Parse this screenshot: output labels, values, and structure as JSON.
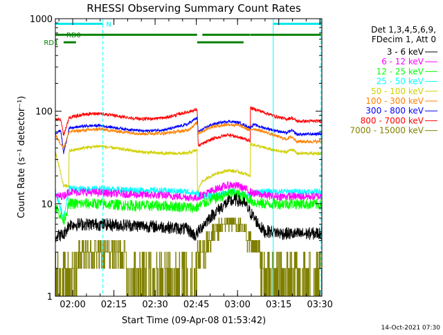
{
  "chart_data": {
    "type": "line",
    "title": "RHESSI Observing Summary Count Rates",
    "xlabel": "Start Time (09-Apr-08 01:53:42)",
    "ylabel": "Count Rate (s⁻¹ detector⁻¹)",
    "x_unit": "minutes since 01:53:42",
    "xlim": [
      0,
      97
    ],
    "ylim": [
      1,
      1000
    ],
    "y_scale": "log",
    "x_ticks": [
      {
        "x": 6.3,
        "label": "02:00"
      },
      {
        "x": 21.3,
        "label": "02:15"
      },
      {
        "x": 36.3,
        "label": "02:30"
      },
      {
        "x": 51.3,
        "label": "02:45"
      },
      {
        "x": 66.3,
        "label": "03:00"
      },
      {
        "x": 81.3,
        "label": "03:15"
      },
      {
        "x": 96.3,
        "label": "03:30"
      }
    ],
    "y_ticks": [
      {
        "y": 1,
        "label": "1"
      },
      {
        "y": 10,
        "label": "10"
      },
      {
        "y": 100,
        "label": "100"
      },
      {
        "y": 1000,
        "label": "1000"
      }
    ],
    "legend_header": [
      "Det 1,3,4,5,6,9,",
      "FDecim 1, Att 0"
    ],
    "footer_date": "14-Oct-2021 07:30",
    "series": [
      {
        "name": "3 - 6 keV",
        "color": "#000000",
        "noise": 0.16,
        "points": [
          [
            0,
            4.5
          ],
          [
            3,
            4.6
          ],
          [
            5,
            6
          ],
          [
            15,
            6
          ],
          [
            30,
            5.8
          ],
          [
            40,
            5.6
          ],
          [
            48,
            5.3
          ],
          [
            51,
            4.5
          ],
          [
            53,
            5.5
          ],
          [
            56,
            7
          ],
          [
            60,
            9
          ],
          [
            63,
            10.5
          ],
          [
            66,
            11
          ],
          [
            69,
            10
          ],
          [
            71,
            8
          ],
          [
            74,
            6
          ],
          [
            76,
            5
          ],
          [
            79,
            5
          ],
          [
            82,
            4.8
          ],
          [
            88,
            4.7
          ],
          [
            97,
            4.8
          ]
        ]
      },
      {
        "name": "6 - 12 keV",
        "color": "#ff00ff",
        "noise": 0.1,
        "points": [
          [
            0,
            12
          ],
          [
            3,
            12.2
          ],
          [
            5,
            13.5
          ],
          [
            15,
            13.2
          ],
          [
            30,
            12.5
          ],
          [
            40,
            12.3
          ],
          [
            48,
            11.8
          ],
          [
            51,
            11.5
          ],
          [
            55,
            13
          ],
          [
            60,
            15
          ],
          [
            64,
            16
          ],
          [
            67,
            15.5
          ],
          [
            70,
            14
          ],
          [
            72,
            13
          ],
          [
            75,
            12.5
          ],
          [
            80,
            12
          ],
          [
            88,
            12
          ],
          [
            97,
            12
          ]
        ]
      },
      {
        "name": "12 - 25 keV",
        "color": "#00ff00",
        "noise": 0.14,
        "points": [
          [
            0,
            9.5
          ],
          [
            3,
            6.5
          ],
          [
            5,
            10
          ],
          [
            15,
            10
          ],
          [
            30,
            9.5
          ],
          [
            40,
            9.5
          ],
          [
            48,
            9.2
          ],
          [
            51,
            9
          ],
          [
            55,
            10.5
          ],
          [
            60,
            12
          ],
          [
            64,
            13
          ],
          [
            67,
            12.5
          ],
          [
            70,
            11.5
          ],
          [
            72,
            10.5
          ],
          [
            75,
            10
          ],
          [
            80,
            10
          ],
          [
            88,
            10
          ],
          [
            97,
            9.8
          ]
        ]
      },
      {
        "name": "25 - 50 keV",
        "color": "#00ffff",
        "noise": 0.08,
        "points": [
          [
            0,
            13.5
          ],
          [
            3,
            7
          ],
          [
            5,
            14.5
          ],
          [
            15,
            14.5
          ],
          [
            30,
            14
          ],
          [
            40,
            13.8
          ],
          [
            48,
            13.5
          ],
          [
            51,
            13
          ],
          [
            55,
            12
          ],
          [
            60,
            12.5
          ],
          [
            64,
            13.5
          ],
          [
            67,
            13
          ],
          [
            70,
            12
          ],
          [
            72,
            13
          ],
          [
            75,
            13.5
          ],
          [
            80,
            13.5
          ],
          [
            88,
            13.5
          ],
          [
            97,
            13.5
          ]
        ]
      },
      {
        "name": "50 - 100 keV",
        "color": "#d0d000",
        "noise": 0.04,
        "points": [
          [
            0,
            37
          ],
          [
            3,
            15.5
          ],
          [
            4.9,
            15.5
          ],
          [
            5,
            37
          ],
          [
            10,
            40
          ],
          [
            16,
            42
          ],
          [
            24,
            39
          ],
          [
            32,
            36
          ],
          [
            40,
            35
          ],
          [
            48,
            35
          ],
          [
            51.6,
            38
          ],
          [
            51.7,
            13
          ],
          [
            53,
            17
          ],
          [
            58,
            21
          ],
          [
            63,
            23
          ],
          [
            67,
            22
          ],
          [
            70.9,
            20
          ],
          [
            71,
            44
          ],
          [
            74,
            42
          ],
          [
            79,
            38
          ],
          [
            84,
            36
          ],
          [
            86,
            39
          ],
          [
            88,
            35
          ],
          [
            97,
            35
          ]
        ]
      },
      {
        "name": "100 - 300 keV",
        "color": "#ff8000",
        "noise": 0.04,
        "points": [
          [
            0,
            55
          ],
          [
            3,
            40
          ],
          [
            5,
            60
          ],
          [
            10,
            62
          ],
          [
            16,
            64
          ],
          [
            24,
            60
          ],
          [
            32,
            57
          ],
          [
            40,
            58
          ],
          [
            48,
            62
          ],
          [
            51.6,
            75
          ],
          [
            52,
            58
          ],
          [
            57,
            68
          ],
          [
            63,
            72
          ],
          [
            67,
            70
          ],
          [
            71,
            62
          ],
          [
            72,
            65
          ],
          [
            76,
            60
          ],
          [
            82,
            52
          ],
          [
            84,
            50
          ],
          [
            86,
            53
          ],
          [
            88,
            47
          ],
          [
            97,
            47
          ]
        ]
      },
      {
        "name": "300 - 800 keV",
        "color": "#0000ff",
        "noise": 0.035,
        "points": [
          [
            0,
            58
          ],
          [
            2,
            62
          ],
          [
            3,
            35
          ],
          [
            5,
            65
          ],
          [
            10,
            69
          ],
          [
            16,
            70
          ],
          [
            24,
            65
          ],
          [
            32,
            61
          ],
          [
            40,
            63
          ],
          [
            48,
            72
          ],
          [
            51.6,
            85
          ],
          [
            52,
            60
          ],
          [
            57,
            72
          ],
          [
            63,
            78
          ],
          [
            67,
            75
          ],
          [
            71,
            66
          ],
          [
            72,
            72
          ],
          [
            76,
            66
          ],
          [
            82,
            60
          ],
          [
            84,
            58
          ],
          [
            86,
            62
          ],
          [
            88,
            56
          ],
          [
            97,
            57
          ]
        ]
      },
      {
        "name": "800 - 7000 keV",
        "color": "#ff0000",
        "noise": 0.04,
        "points": [
          [
            0,
            80
          ],
          [
            2,
            82
          ],
          [
            3,
            55
          ],
          [
            5,
            85
          ],
          [
            10,
            92
          ],
          [
            16,
            95
          ],
          [
            24,
            87
          ],
          [
            32,
            82
          ],
          [
            40,
            85
          ],
          [
            48,
            98
          ],
          [
            51.6,
            104
          ],
          [
            52,
            42
          ],
          [
            57,
            50
          ],
          [
            63,
            56
          ],
          [
            67,
            52
          ],
          [
            70.9,
            48
          ],
          [
            71,
            108
          ],
          [
            74,
            102
          ],
          [
            79,
            90
          ],
          [
            84,
            82
          ],
          [
            86,
            85
          ],
          [
            88,
            78
          ],
          [
            97,
            78
          ]
        ]
      },
      {
        "name": "7000 - 15000 keV",
        "color": "#808000",
        "noise": 0,
        "points": [
          [
            0,
            1.5
          ],
          [
            3,
            2
          ],
          [
            5,
            2
          ],
          [
            6,
            1.5
          ],
          [
            10,
            3
          ],
          [
            16,
            2.4
          ],
          [
            20,
            3
          ],
          [
            24,
            2.4
          ],
          [
            28,
            2
          ],
          [
            32,
            1.5
          ],
          [
            40,
            1.5
          ],
          [
            48,
            1.5
          ],
          [
            51,
            2
          ],
          [
            53,
            3
          ],
          [
            56,
            4
          ],
          [
            58,
            5
          ],
          [
            60,
            5.5
          ],
          [
            63,
            6.5
          ],
          [
            66,
            6
          ],
          [
            69,
            5
          ],
          [
            71,
            4
          ],
          [
            73,
            3
          ],
          [
            75,
            2
          ],
          [
            78,
            2
          ],
          [
            80,
            1.5
          ],
          [
            86,
            2
          ],
          [
            90,
            1.5
          ],
          [
            97,
            1.5
          ]
        ]
      }
    ],
    "vlines": [
      {
        "x": 0,
        "color": "#00ffff",
        "style": "solid"
      },
      {
        "x": 17.3,
        "color": "#00ffff",
        "style": "dashed"
      },
      {
        "x": 79.3,
        "color": "#00ffff",
        "style": "solid"
      },
      {
        "x": 96.7,
        "color": "#00ffff",
        "style": "dashed"
      }
    ],
    "flag_bars": [
      {
        "label": "N",
        "color": "#00e8e8",
        "y": 880,
        "label_x": 18.5,
        "segments": [
          [
            0,
            17.3
          ],
          [
            79.3,
            96.7
          ]
        ]
      },
      {
        "label": "RD0",
        "color": "#008000",
        "y": 670,
        "label_x": 4.0,
        "segments": [
          [
            0,
            51.6
          ],
          [
            53.5,
            70.9
          ],
          [
            71,
            96.7
          ]
        ]
      },
      {
        "label": "RD1",
        "color": "#008000",
        "y": 555,
        "label_x": -4.2,
        "segments": [
          [
            3,
            7.5
          ],
          [
            51.6,
            68.5
          ]
        ]
      }
    ]
  }
}
